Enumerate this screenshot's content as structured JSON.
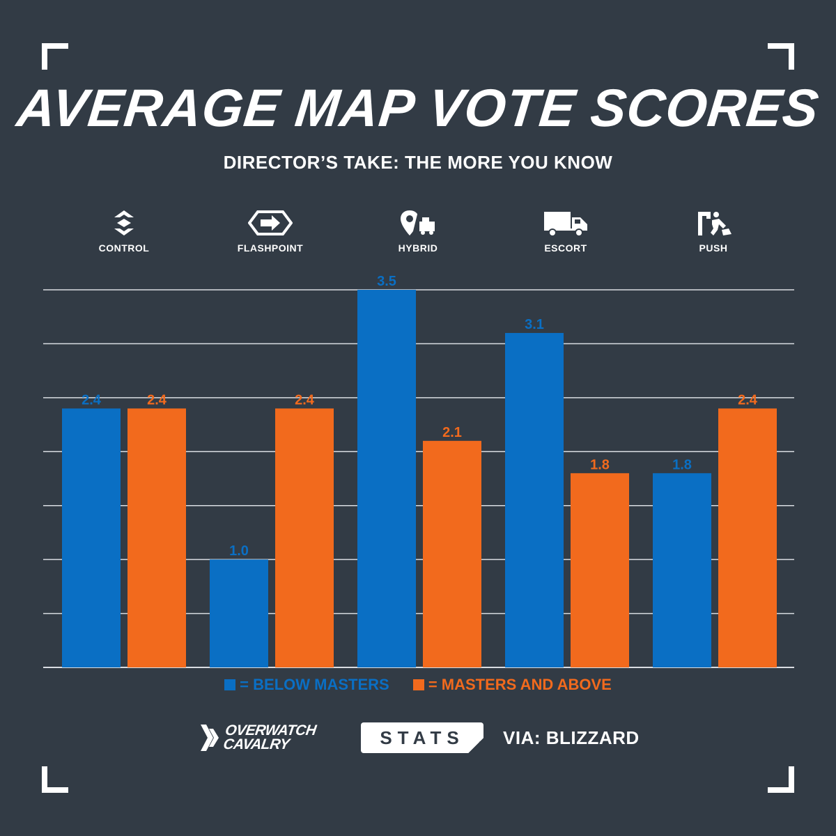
{
  "title": "AVERAGE MAP VOTE SCORES",
  "subtitle": "DIRECTOR’S TAKE: THE MORE YOU KNOW",
  "modes": [
    {
      "label": "CONTROL",
      "icon": "control-icon"
    },
    {
      "label": "FLASHPOINT",
      "icon": "flashpoint-icon"
    },
    {
      "label": "HYBRID",
      "icon": "hybrid-icon"
    },
    {
      "label": "ESCORT",
      "icon": "escort-icon"
    },
    {
      "label": "PUSH",
      "icon": "push-icon"
    }
  ],
  "legend": {
    "below": "= BELOW MASTERS",
    "above": "= MASTERS AND ABOVE"
  },
  "footer": {
    "brand_line1": "OVERWATCH",
    "brand_line2": "CAVALRY",
    "badge": "STATS",
    "source": "VIA: BLIZZARD"
  },
  "colors": {
    "background": "#323b45",
    "below": "#0a6fc4",
    "above": "#f26a1d",
    "grid": "#d9dde2"
  },
  "chart_data": {
    "type": "bar",
    "title": "AVERAGE MAP VOTE SCORES",
    "categories": [
      "CONTROL",
      "FLASHPOINT",
      "HYBRID",
      "ESCORT",
      "PUSH"
    ],
    "series": [
      {
        "name": "BELOW MASTERS",
        "values": [
          2.4,
          1.0,
          3.5,
          3.1,
          1.8
        ],
        "labels": [
          "2.4",
          "1.0",
          "3.5",
          "3.1",
          "1.8"
        ]
      },
      {
        "name": "MASTERS AND ABOVE",
        "values": [
          2.4,
          2.4,
          2.1,
          1.8,
          2.4
        ],
        "labels": [
          "2.4",
          "2.4",
          "2.1",
          "1.8",
          "2.4"
        ]
      }
    ],
    "ylim": [
      0,
      3.5
    ],
    "grid": true,
    "legend_position": "bottom"
  }
}
